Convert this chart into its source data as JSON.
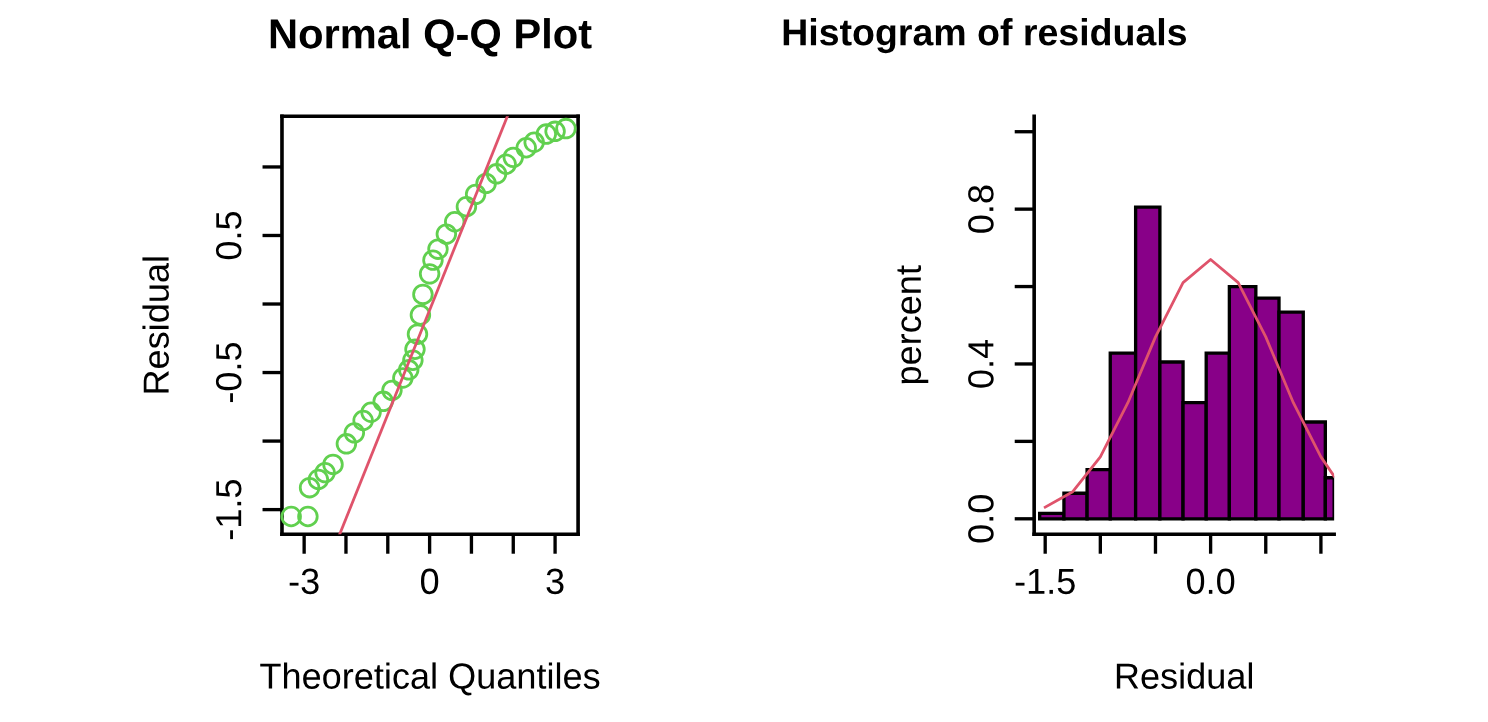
{
  "chart_data": [
    {
      "type": "scatter",
      "title": "Normal Q-Q Plot",
      "xlabel": "Theoretical Quantiles",
      "ylabel": "Residual",
      "xlim": [
        -3.53,
        3.55
      ],
      "ylim": [
        -1.68,
        1.37
      ],
      "xticks": [
        -3,
        {
          "value": -2,
          "label": null
        },
        {
          "value": -1,
          "label": null
        },
        0,
        {
          "value": 1,
          "label": null
        },
        {
          "value": 2,
          "label": null
        },
        3
      ],
      "yticks": [
        {
          "value": -1.5,
          "label": "-1.5"
        },
        {
          "value": -1.0,
          "label": null
        },
        {
          "value": -0.5,
          "label": "-0.5"
        },
        {
          "value": 0,
          "label": null
        },
        {
          "value": 0.5,
          "label": "0.5"
        },
        {
          "value": 1.0,
          "label": null
        }
      ],
      "series": [
        {
          "type": "scatter",
          "marker": "circle",
          "color": "#61d04f",
          "x": [
            -3.31,
            -2.91,
            -2.87,
            -2.66,
            -2.5,
            -2.31,
            -1.99,
            -1.8,
            -1.59,
            -1.4,
            -1.11,
            -0.9,
            -0.64,
            -0.5,
            -0.4,
            -0.35,
            -0.29,
            -0.22,
            -0.16,
            0.0,
            0.08,
            0.2,
            0.4,
            0.6,
            0.88,
            1.1,
            1.35,
            1.6,
            1.83,
            2.0,
            2.31,
            2.5,
            2.79,
            3.0,
            3.26
          ],
          "values": [
            -1.55,
            -1.55,
            -1.34,
            -1.28,
            -1.23,
            -1.17,
            -1.02,
            -0.94,
            -0.85,
            -0.79,
            -0.71,
            -0.63,
            -0.54,
            -0.48,
            -0.41,
            -0.33,
            -0.22,
            -0.08,
            0.07,
            0.22,
            0.32,
            0.4,
            0.51,
            0.6,
            0.71,
            0.8,
            0.88,
            0.95,
            1.02,
            1.07,
            1.14,
            1.18,
            1.24,
            1.26,
            1.28
          ]
        },
        {
          "type": "line",
          "color": "#df536b",
          "x": [
            -2.15,
            1.86
          ],
          "values": [
            -1.68,
            1.37
          ]
        }
      ]
    },
    {
      "type": "histogram",
      "title": "Histogram of residuals",
      "xlabel": "Residual",
      "ylabel": "percent",
      "color": "#880088",
      "bins": [
        -1.55,
        -1.33,
        -1.12,
        -0.91,
        -0.68,
        -0.46,
        -0.25,
        -0.04,
        0.17,
        0.41,
        0.62,
        0.84,
        1.04,
        1.12
      ],
      "values": [
        0.014,
        0.066,
        0.127,
        0.428,
        0.805,
        0.405,
        0.3,
        0.428,
        0.6,
        0.57,
        0.534,
        0.25,
        0.106
      ],
      "xlim": [
        -1.6,
        1.12
      ],
      "ylim": [
        -0.04,
        1.04
      ],
      "xticks": [
        -1.5,
        {
          "value": -1.0,
          "label": null
        },
        {
          "value": -0.5,
          "label": null
        },
        {
          "value": 0,
          "label": "0.0"
        },
        {
          "value": 0.5,
          "label": null
        },
        {
          "value": 1.0,
          "label": null
        }
      ],
      "yticks": [
        {
          "value": 0,
          "label": "0.0"
        },
        {
          "value": 0.2,
          "label": null
        },
        0.4,
        {
          "value": 0.6,
          "label": null
        },
        0.8,
        {
          "value": 1.0,
          "label": null
        }
      ],
      "series": [
        {
          "type": "line",
          "color": "#df536b",
          "x": [
            -1.5,
            -1.25,
            -1.0,
            -0.75,
            -0.5,
            -0.25,
            0.0,
            0.25,
            0.5,
            0.75,
            1.0,
            1.12
          ],
          "values": [
            0.03,
            0.07,
            0.16,
            0.3,
            0.47,
            0.61,
            0.67,
            0.61,
            0.47,
            0.3,
            0.16,
            0.11
          ]
        }
      ]
    }
  ]
}
